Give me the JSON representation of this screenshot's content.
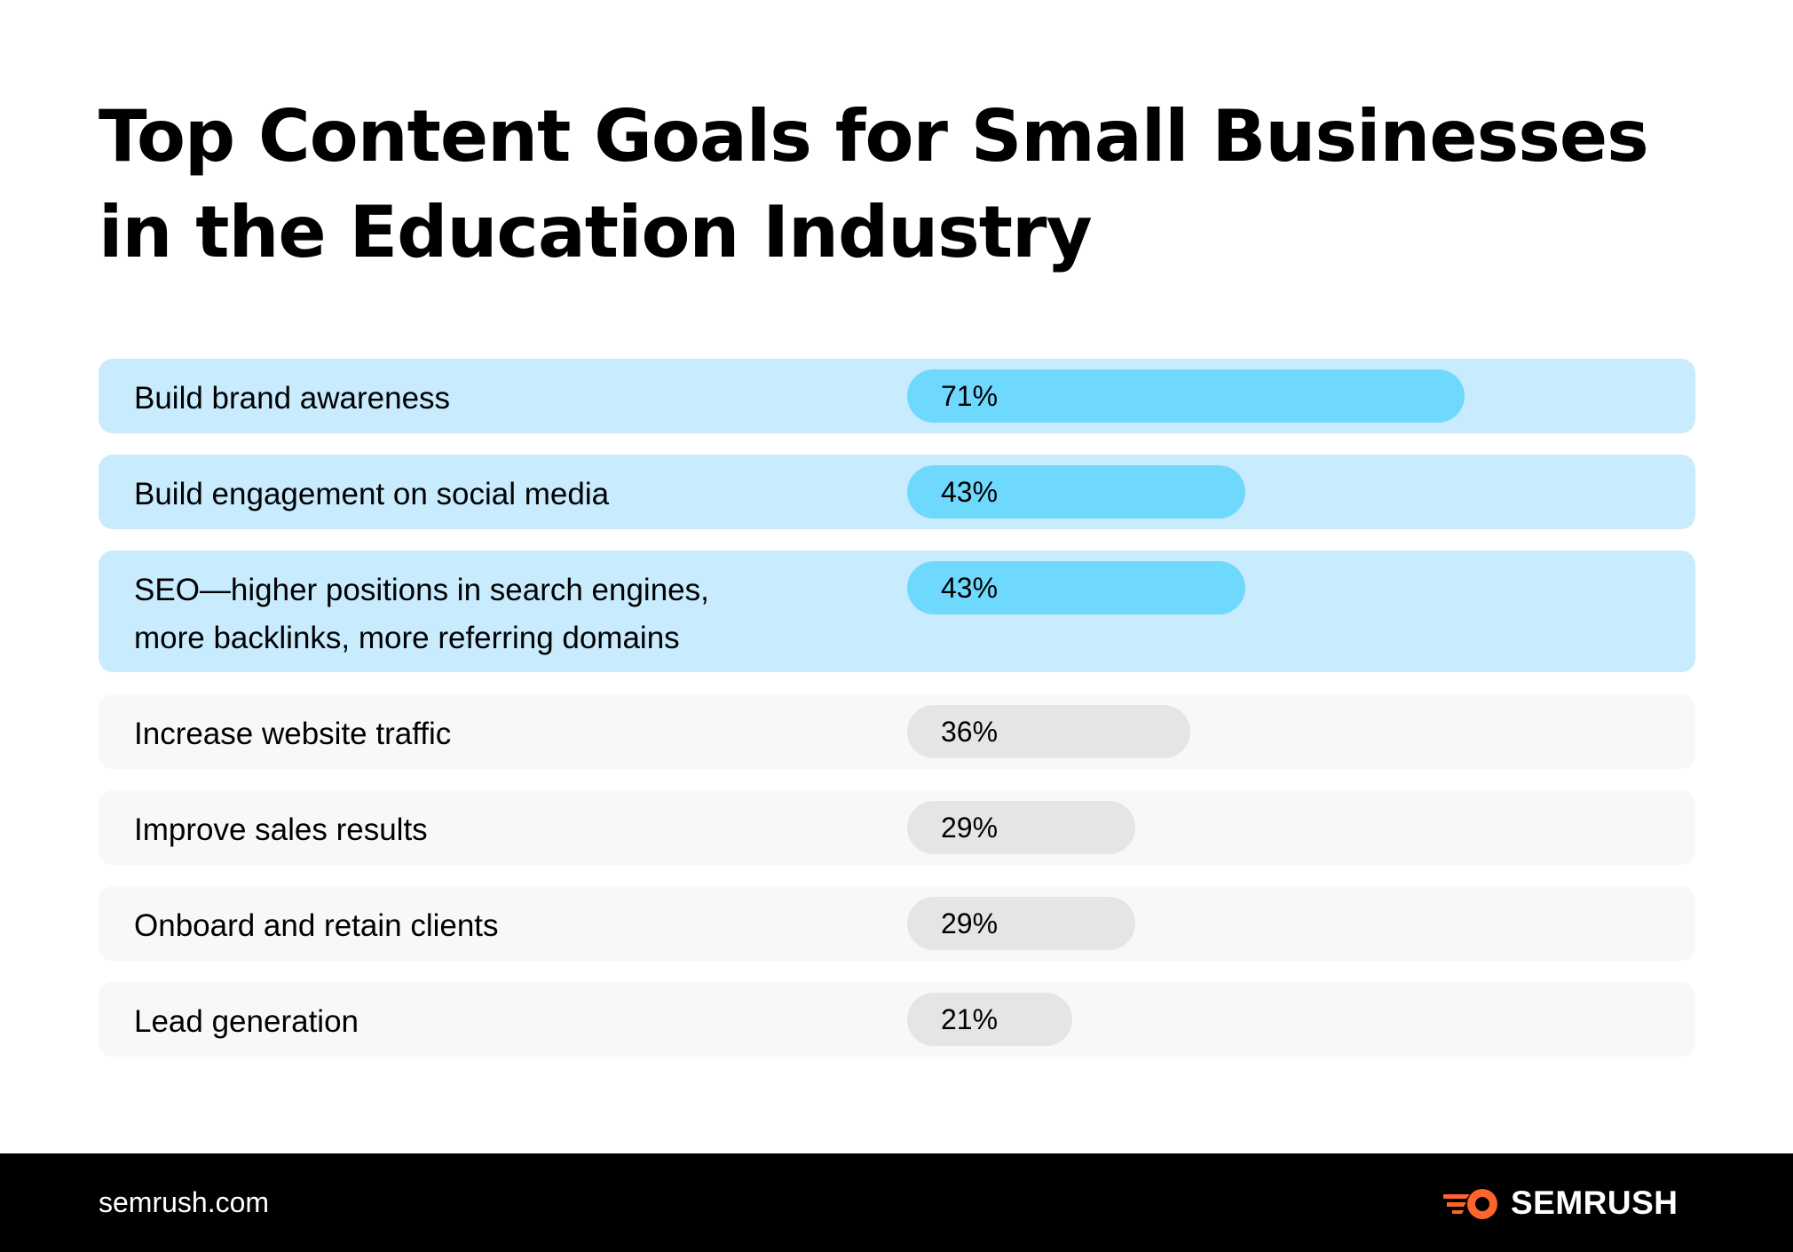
{
  "colors": {
    "highlight_row": "#c8ebfd",
    "highlight_bar": "#6fd9fd",
    "normal_row": "#f8f8f8",
    "normal_bar": "#e5e5e5",
    "footer_bg": "#000000",
    "logo_accent": "#ff642d"
  },
  "chart_data": {
    "type": "bar",
    "orientation": "horizontal",
    "title_lines": [
      "Top Content Goals for Small Businesses",
      "in the Education Industry"
    ],
    "xlim": [
      0,
      100
    ],
    "unit": "%",
    "items": [
      {
        "label_lines": [
          "Build brand awareness"
        ],
        "value": 71,
        "value_label": "71%",
        "highlighted": true
      },
      {
        "label_lines": [
          "Build engagement on social media"
        ],
        "value": 43,
        "value_label": "43%",
        "highlighted": true
      },
      {
        "label_lines": [
          "SEO—higher positions in search engines,",
          "more backlinks, more referring domains"
        ],
        "value": 43,
        "value_label": "43%",
        "highlighted": true
      },
      {
        "label_lines": [
          "Increase website traffic"
        ],
        "value": 36,
        "value_label": "36%",
        "highlighted": false
      },
      {
        "label_lines": [
          "Improve sales results"
        ],
        "value": 29,
        "value_label": "29%",
        "highlighted": false
      },
      {
        "label_lines": [
          "Onboard and retain clients"
        ],
        "value": 29,
        "value_label": "29%",
        "highlighted": false
      },
      {
        "label_lines": [
          "Lead generation"
        ],
        "value": 21,
        "value_label": "21%",
        "highlighted": false
      }
    ]
  },
  "footer": {
    "url": "semrush.com",
    "logo": {
      "icon": "semrush-fire-icon",
      "wordmark": "SEMRUSH"
    }
  }
}
